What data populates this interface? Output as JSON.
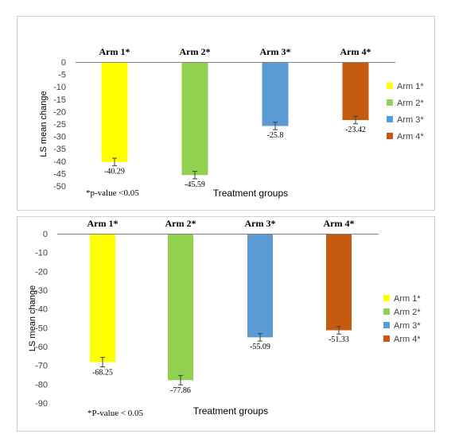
{
  "chart_data": [
    {
      "type": "bar",
      "categories": [
        "Arm 1*",
        "Arm 2*",
        "Arm 3*",
        "Arm 4*"
      ],
      "values": [
        -40.29,
        -45.59,
        -25.8,
        -23.42
      ],
      "value_labels": [
        "-40.29",
        "-45.59",
        "-25.8",
        "-23.42"
      ],
      "error": [
        1.5,
        1.5,
        1.5,
        1.5
      ],
      "colors": [
        "#ffff00",
        "#92d050",
        "#5b9bd5",
        "#c55a11"
      ],
      "ylabel": "LS mean change",
      "xlabel": "Treatment groups",
      "note": "*p-value <0.05",
      "ylim": [
        -50,
        0
      ],
      "yticks": [
        0,
        -5,
        -10,
        -15,
        -20,
        -25,
        -30,
        -35,
        -40,
        -45,
        -50
      ],
      "ytick_labels": [
        "0",
        "-5",
        "-10",
        "-15",
        "-20",
        "-25",
        "-30",
        "-35",
        "-40",
        "-45",
        "-50"
      ],
      "legend": [
        "Arm 1*",
        "Arm 2*",
        "Arm 3*",
        "Arm 4*"
      ],
      "legend_position": "right"
    },
    {
      "type": "bar",
      "categories": [
        "Arm 1*",
        "Arm 2*",
        "Arm 3*",
        "Arm 4*"
      ],
      "values": [
        -68.25,
        -77.86,
        -55.09,
        -51.33
      ],
      "value_labels": [
        "-68.25",
        "-77.86",
        "-55.09",
        "-51.33"
      ],
      "error": [
        2.5,
        2.5,
        2.0,
        2.0
      ],
      "colors": [
        "#ffff00",
        "#92d050",
        "#5b9bd5",
        "#c55a11"
      ],
      "ylabel": "LS mean change",
      "xlabel": "Treatment groups",
      "note": "*P-value < 0.05",
      "ylim": [
        -90,
        0
      ],
      "yticks": [
        0,
        -10,
        -20,
        -30,
        -40,
        -50,
        -60,
        -70,
        -80,
        -90
      ],
      "ytick_labels": [
        "0",
        "-10",
        "-20",
        "-30",
        "-40",
        "-50",
        "-60",
        "-70",
        "-80",
        "-90"
      ],
      "legend": [
        "Arm 1*",
        "Arm 2*",
        "Arm 3*",
        "Arm 4*"
      ],
      "legend_position": "right"
    }
  ]
}
